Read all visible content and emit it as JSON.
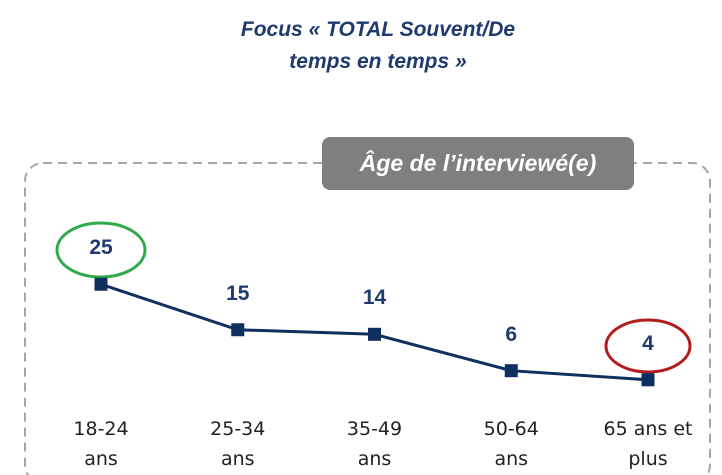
{
  "chart_data": {
    "type": "line",
    "title": "Focus « TOTAL Souvent/De temps en temps »",
    "subtitle": "Âge de l’interviewé(e)",
    "categories": [
      "18-24 ans",
      "25-34 ans",
      "35-49 ans",
      "50-64 ans",
      "65 ans et plus"
    ],
    "values": [
      25,
      15,
      14,
      6,
      4
    ],
    "color": "#0e2f5f"
  }
}
